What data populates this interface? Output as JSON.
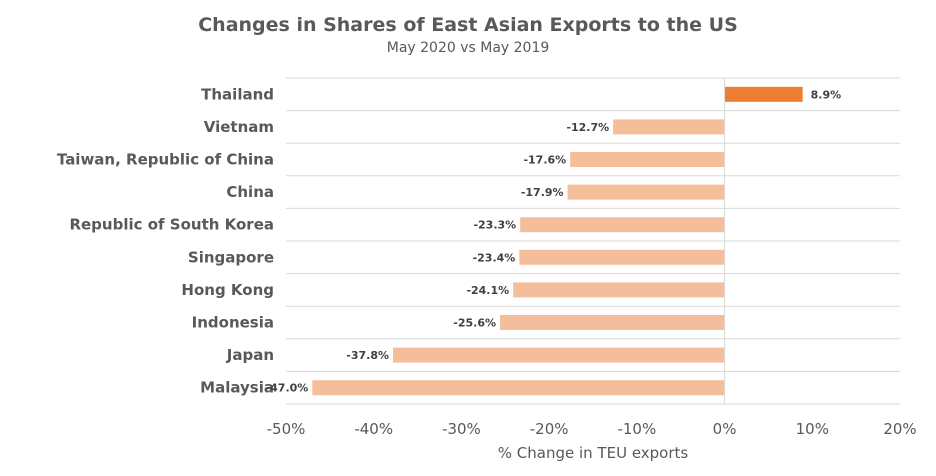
{
  "chart_data": {
    "type": "bar",
    "orientation": "horizontal",
    "title": "Changes in Shares of East Asian Exports to the US",
    "subtitle": "May 2020 vs May 2019",
    "xlabel": "% Change in TEU exports",
    "categories": [
      "Thailand",
      "Vietnam",
      "Taiwan, Republic of China",
      "China",
      "Republic of South Korea",
      "Singapore",
      "Hong Kong",
      "Indonesia",
      "Japan",
      "Malaysia"
    ],
    "values": [
      8.9,
      -12.7,
      -17.6,
      -17.9,
      -23.3,
      -23.4,
      -24.1,
      -25.6,
      -37.8,
      -47.0
    ],
    "data_labels": [
      "8.9%",
      "-12.7%",
      "-17.6%",
      "-17.9%",
      "-23.3%",
      "-23.4%",
      "-24.1%",
      "-25.6%",
      "-37.8%",
      "-47.0%"
    ],
    "xlim": [
      -50,
      20
    ],
    "xticks": [
      -50,
      -40,
      -30,
      -20,
      -10,
      0,
      10,
      20
    ],
    "xtick_labels": [
      "-50%",
      "-40%",
      "-30%",
      "-20%",
      "-10%",
      "0%",
      "10%",
      "20%"
    ],
    "grid": "horizontal row separators",
    "colors": {
      "positive": "#ED7D31",
      "negative": "#F4BE9A",
      "grid": "#D9D9D9",
      "text": "#595959"
    }
  }
}
